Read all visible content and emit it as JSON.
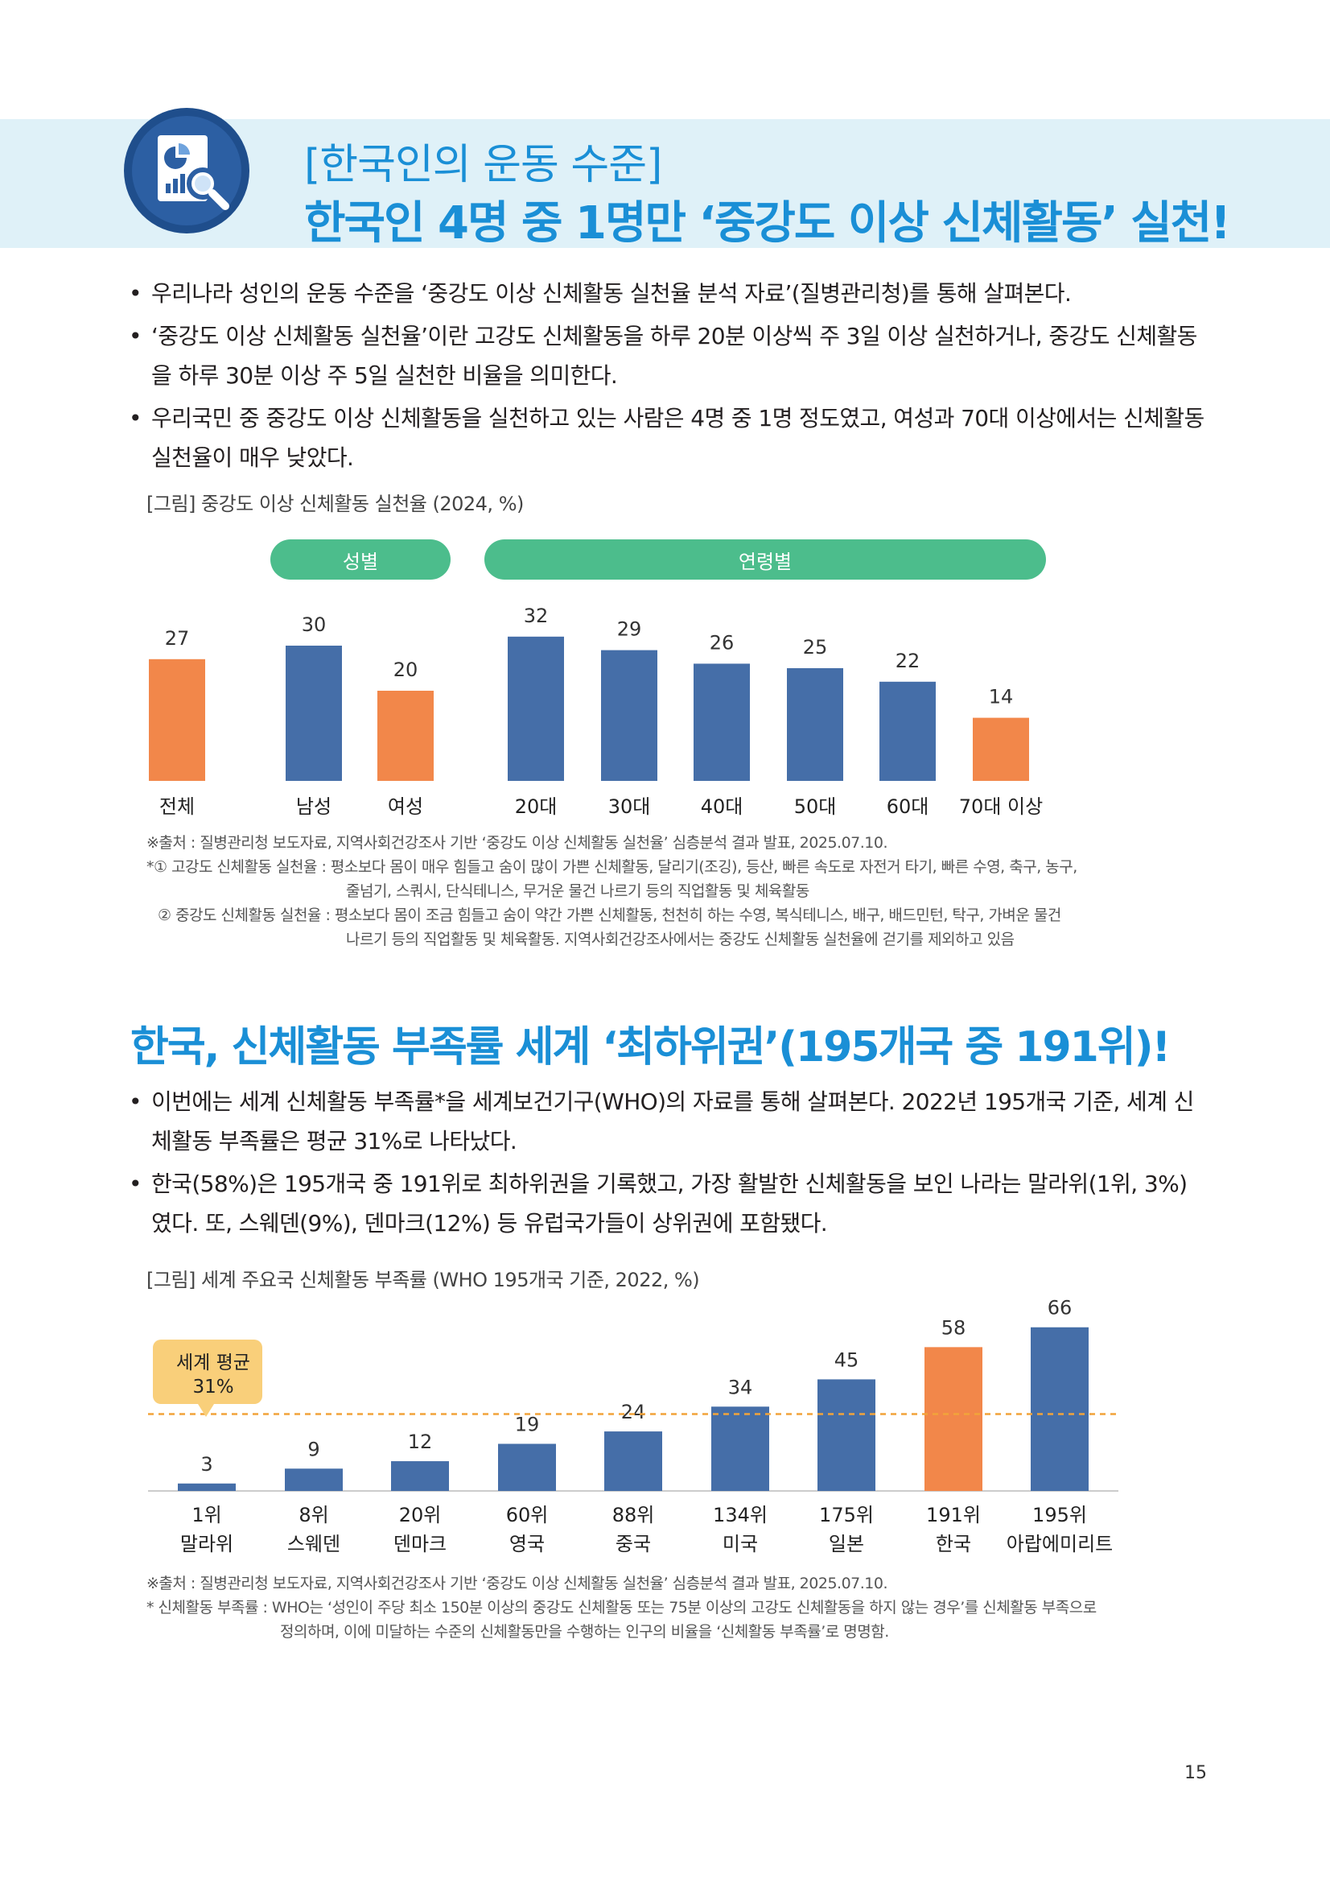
{
  "header": {
    "subtitle": "[한국인의 운동 수준]",
    "title": "한국인 4명 중 1명만 ‘중강도 이상 신체활동’ 실천!"
  },
  "section1": {
    "bullets": [
      "우리나라 성인의 운동 수준을 ‘중강도 이상 신체활동 실천율 분석 자료’(질병관리청)를 통해 살펴본다.",
      "‘중강도 이상 신체활동 실천율’이란 고강도 신체활동을 하루 20분 이상씩 주 3일 이상 실천하거나, 중강도 신체활동을 하루 30분 이상 주 5일 실천한 비율을 의미한다.",
      "우리국민 중 중강도 이상 신체활동을 실천하고 있는 사람은 4명 중 1명 정도였고, 여성과 70대 이상에서는 신체활동 실천율이 매우 낮았다."
    ],
    "figure_caption": "[그림] 중강도 이상 신체활동 실천율 (2024, %)",
    "group_labels": {
      "gender": "성별",
      "age": "연령별"
    },
    "notes": [
      "※출처 : 질병관리청 보도자료, 지역사회건강조사 기반 ‘중강도 이상 신체활동 실천율’ 심층분석 결과 발표, 2025.07.10.",
      "*① 고강도 신체활동 실천율 : 평소보다 몸이 매우 힘들고 숨이 많이 가쁜 신체활동, 달리기(조깅), 등산, 빠른 속도로 자전거 타기, 빠른 수영, 축구, 농구,",
      "줄넘기, 스쿼시, 단식테니스, 무거운 물건 나르기 등의 직업활동 및 체육활동",
      "② 중강도 신체활동 실천율 : 평소보다 몸이 조금 힘들고 숨이 약간 가쁜 신체활동, 천천히 하는 수영, 복식테니스, 배구, 배드민턴, 탁구, 가벼운 물건",
      "나르기 등의 직업활동 및 체육활동. 지역사회건강조사에서는 중강도 신체활동 실천율에 걷기를 제외하고 있음"
    ]
  },
  "section2": {
    "title": "한국, 신체활동 부족률 세계 ‘최하위권’(195개국 중 191위)!",
    "bullets": [
      "이번에는 세계 신체활동 부족률*을 세계보건기구(WHO)의 자료를 통해 살펴본다. 2022년 195개국 기준, 세계 신체활동 부족률은 평균 31%로 나타났다.",
      "한국(58%)은 195개국 중 191위로 최하위권을 기록했고, 가장 활발한 신체활동을 보인 나라는 말라위(1위, 3%)였다. 또, 스웨덴(9%), 덴마크(12%) 등 유럽국가들이 상위권에 포함됐다."
    ],
    "figure_caption": "[그림] 세계 주요국 신체활동 부족률 (WHO 195개국 기준, 2022, %)",
    "avg_label_line1": "세계 평균",
    "avg_label_line2": "31%",
    "notes": [
      "※출처 : 질병관리청 보도자료, 지역사회건강조사 기반 ‘중강도 이상 신체활동 실천율’ 심층분석 결과 발표, 2025.07.10.",
      "* 신체활동 부족률 : WHO는 ‘성인이 주당 최소 150분 이상의 중강도 신체활동 또는 75분 이상의 고강도 신체활동을 하지 않는 경우’를 신체활동 부족으로",
      "정의하며, 이에 미달하는 수준의 신체활동만을 수행하는 인구의 비율을 ‘신체활동 부족률’로 명명함."
    ]
  },
  "chart_data": [
    {
      "type": "bar",
      "title": "[그림] 중강도 이상 신체활동 실천율 (2024, %)",
      "categories": [
        "전체",
        "남성",
        "여성",
        "20대",
        "30대",
        "40대",
        "50대",
        "60대",
        "70대 이상"
      ],
      "values": [
        27,
        30,
        20,
        32,
        29,
        26,
        25,
        22,
        14
      ],
      "highlight": [
        true,
        false,
        true,
        false,
        false,
        false,
        false,
        false,
        true
      ],
      "groups": [
        {
          "name": "성별",
          "categories": [
            "남성",
            "여성"
          ]
        },
        {
          "name": "연령별",
          "categories": [
            "20대",
            "30대",
            "40대",
            "50대",
            "60대",
            "70대 이상"
          ]
        }
      ],
      "ylim": [
        0,
        35
      ],
      "colors": {
        "primary": "#456ea8",
        "highlight": "#f2874a"
      }
    },
    {
      "type": "bar",
      "title": "[그림] 세계 주요국 신체활동 부족률 (WHO 195개국 기준, 2022, %)",
      "categories": [
        "말라위",
        "스웨덴",
        "덴마크",
        "영국",
        "중국",
        "미국",
        "일본",
        "한국",
        "아랍에미리트"
      ],
      "ranks": [
        "1위",
        "8위",
        "20위",
        "60위",
        "88위",
        "134위",
        "175위",
        "191위",
        "195위"
      ],
      "values": [
        3,
        9,
        12,
        19,
        24,
        34,
        45,
        58,
        66
      ],
      "highlight": [
        false,
        false,
        false,
        false,
        false,
        false,
        false,
        true,
        false
      ],
      "reference_line": {
        "label": "세계 평균 31%",
        "value": 31
      },
      "ylim": [
        0,
        70
      ],
      "colors": {
        "primary": "#456ea8",
        "highlight": "#f2874a",
        "reference": "#f2a33a"
      }
    }
  ],
  "page_number": "15"
}
